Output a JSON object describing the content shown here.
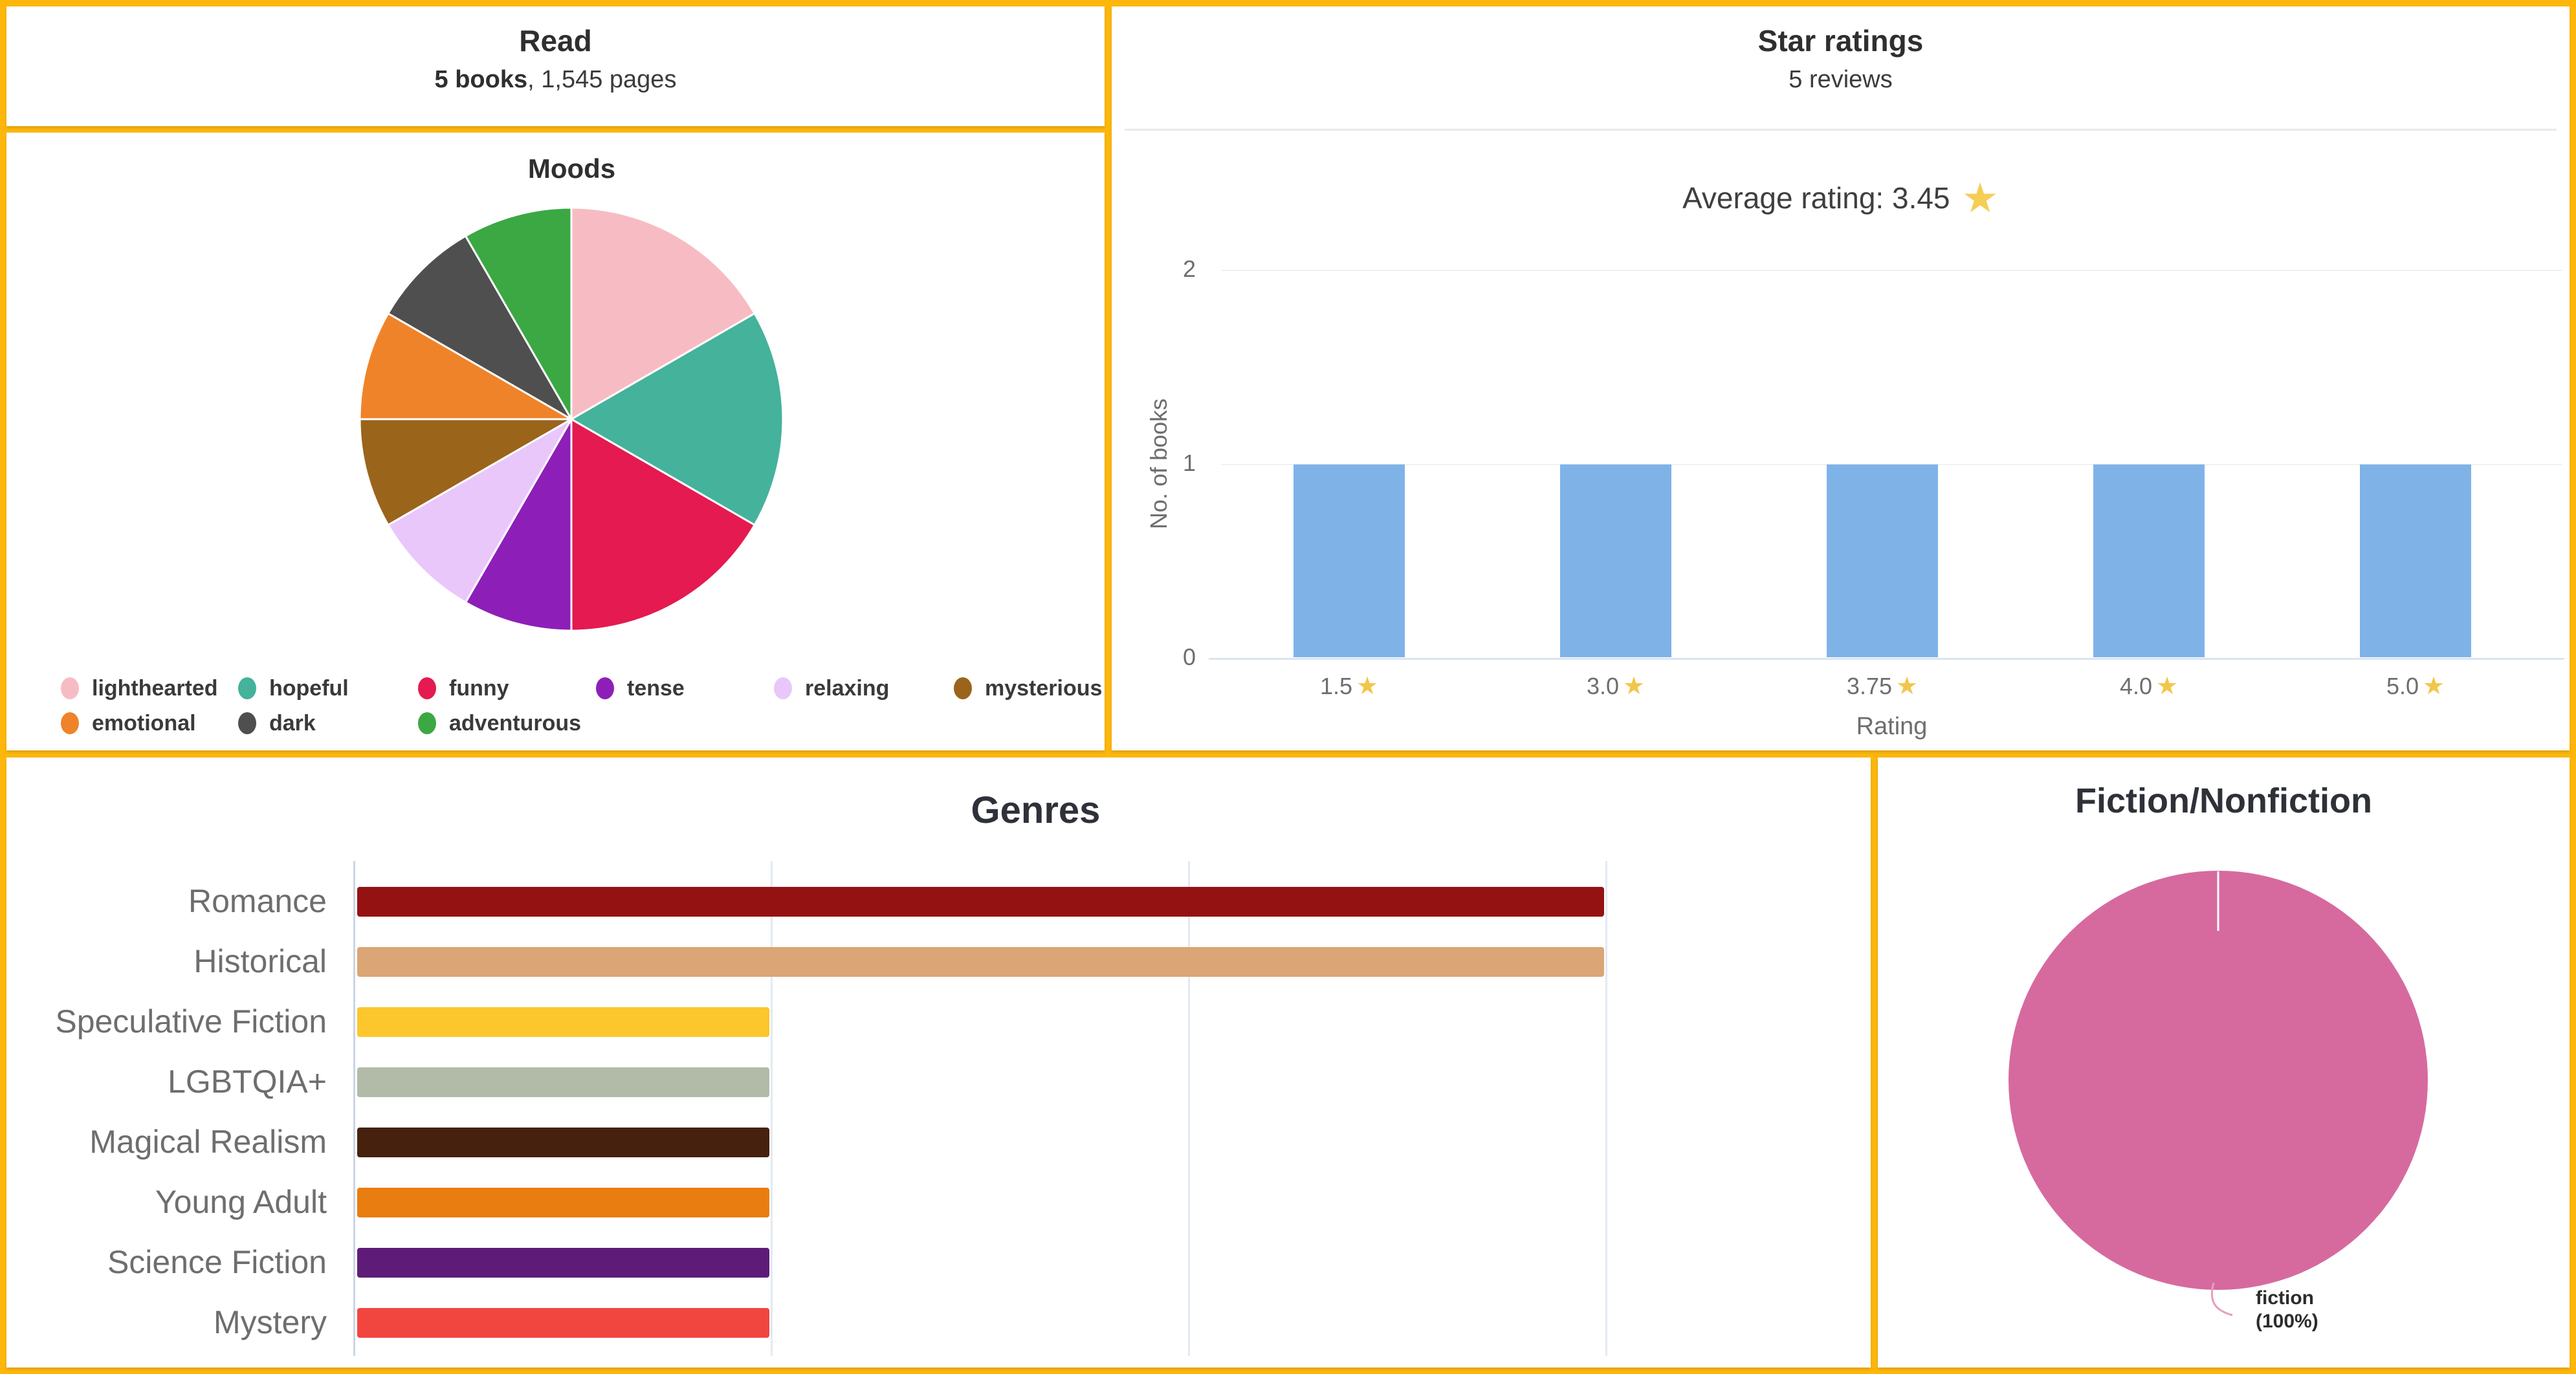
{
  "app": {
    "title": "Reading stats dashboard"
  },
  "colors": {
    "frame": "#fcb70a",
    "panel_bg": "#ffffff",
    "heading": "#2f2f2f",
    "muted_text": "#6e6e6e",
    "bar_blue": "#7fb3e8",
    "star_yellow": "#f6cd55",
    "fiction_pink": "#d66a9f"
  },
  "panels": {
    "read": {
      "title": "Read",
      "books": "5 books",
      "pages_suffix": ", 1,545 pages"
    },
    "moods": {
      "title": "Moods"
    },
    "star_ratings": {
      "title": "Star ratings",
      "subtitle": "5 reviews",
      "average_label": "Average rating: 3.45",
      "star_icon": "★",
      "xlabel": "Rating",
      "ylabel": "No. of books"
    },
    "genres": {
      "title": "Genres"
    },
    "fiction_nonfiction": {
      "title": "Fiction/Nonfiction",
      "callout_line1": "fiction",
      "callout_line2": "(100%)"
    }
  },
  "chart_data": [
    {
      "id": "moods",
      "type": "pie",
      "title": "Moods",
      "labels": [
        "lighthearted",
        "hopeful",
        "funny",
        "tense",
        "relaxing",
        "mysterious",
        "emotional",
        "dark",
        "adventurous"
      ],
      "values": [
        2,
        2,
        2,
        1,
        1,
        1,
        1,
        1,
        1
      ],
      "percents": [
        16.7,
        16.7,
        16.7,
        8.3,
        8.3,
        8.3,
        8.3,
        8.3,
        8.3
      ],
      "colors": [
        "#f7bcc3",
        "#45b29c",
        "#e41a50",
        "#8d1fb8",
        "#e9c7fb",
        "#9a641b",
        "#ef8329",
        "#4f4f4f",
        "#3ba844"
      ],
      "start_angle": "12-oclock",
      "direction": "clockwise",
      "legend_position": "bottom"
    },
    {
      "id": "star-ratings",
      "type": "bar",
      "title": "Star ratings",
      "subtitle": "5 reviews",
      "annotation": "Average rating: 3.45",
      "categories": [
        "1.5",
        "3.0",
        "3.75",
        "4.0",
        "5.0"
      ],
      "values": [
        1,
        1,
        1,
        1,
        1
      ],
      "xlabel": "Rating",
      "ylabel": "No. of books",
      "yticks": [
        0,
        1,
        2
      ],
      "ylim": [
        0,
        2.3
      ],
      "bar_color": "#7fb3e8",
      "grid": true
    },
    {
      "id": "genres",
      "type": "bar-horizontal",
      "title": "Genres",
      "categories": [
        "Romance",
        "Historical",
        "Speculative Fiction",
        "LGBTQIA+",
        "Magical Realism",
        "Young Adult",
        "Science Fiction",
        "Mystery"
      ],
      "values": [
        3,
        3,
        1,
        1,
        1,
        1,
        1,
        1
      ],
      "colors": [
        "#951212",
        "#dca575",
        "#fcc62d",
        "#b2bba7",
        "#45210e",
        "#e97d10",
        "#5e1c78",
        "#f14540"
      ],
      "xlim": [
        0,
        3
      ],
      "xticks": [
        0,
        1,
        2,
        3
      ],
      "grid": true
    },
    {
      "id": "fiction-nonfiction",
      "type": "pie",
      "title": "Fiction/Nonfiction",
      "labels": [
        "fiction"
      ],
      "values": [
        5
      ],
      "percents": [
        100
      ],
      "colors": [
        "#d66a9f"
      ],
      "callout": "fiction (100%)"
    }
  ]
}
